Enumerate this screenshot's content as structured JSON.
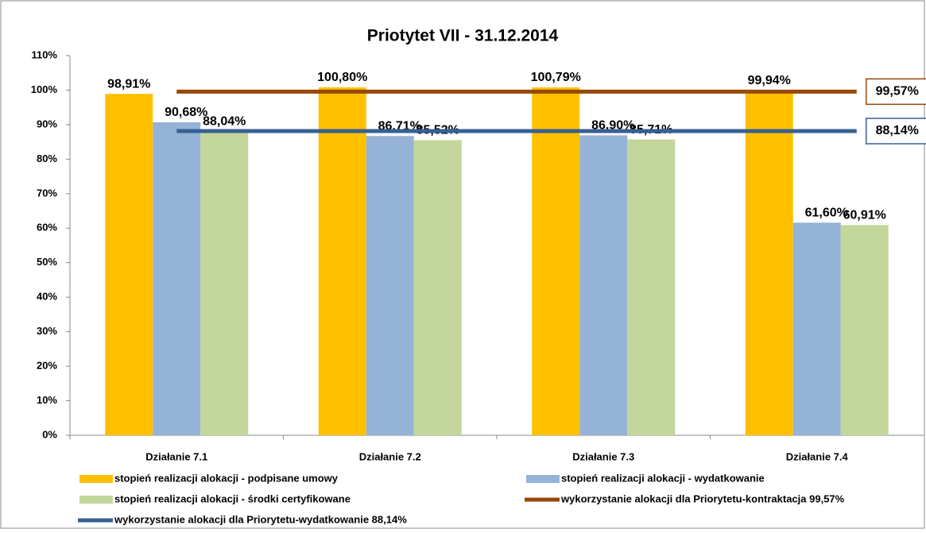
{
  "chart_data": {
    "type": "bar",
    "title": "Priotytet VII - 31.12.2014",
    "categories": [
      "Działanie  7.1",
      "Działanie  7.2",
      "Działanie  7.3",
      "Działanie  7.4"
    ],
    "ylim": [
      0,
      110
    ],
    "yticks": [
      {
        "value": 0,
        "label": "0%"
      },
      {
        "value": 10,
        "label": "10%"
      },
      {
        "value": 20,
        "label": "20%"
      },
      {
        "value": 30,
        "label": "30%"
      },
      {
        "value": 40,
        "label": "40%"
      },
      {
        "value": 50,
        "label": "50%"
      },
      {
        "value": 60,
        "label": "60%"
      },
      {
        "value": 70,
        "label": "70%"
      },
      {
        "value": 80,
        "label": "80%"
      },
      {
        "value": 90,
        "label": "90%"
      },
      {
        "value": 100,
        "label": "100%"
      },
      {
        "value": 110,
        "label": "110%"
      }
    ],
    "series": [
      {
        "name": "stopień realizacji alokacji - podpisane umowy",
        "color": "#ffc000",
        "values": [
          98.91,
          100.8,
          100.79,
          99.94
        ],
        "value_labels": [
          "98,91%",
          "100,80%",
          "100,79%",
          "99,94%"
        ]
      },
      {
        "name": "stopień realizacji alokacji - wydatkowanie",
        "color": "#95b3d7",
        "values": [
          90.68,
          86.71,
          86.9,
          61.6
        ],
        "value_labels": [
          "90,68%",
          "86,71%",
          "86,90%",
          "61,60%"
        ]
      },
      {
        "name": "stopień realizacji alokacji - środki certyfikowane",
        "color": "#c3d69b",
        "values": [
          88.04,
          85.52,
          85.71,
          60.91
        ],
        "value_labels": [
          "88,04%",
          "85,52%",
          "85,71%",
          "60,91%"
        ]
      }
    ],
    "reference_lines": [
      {
        "name": "wykorzystanie alokacji dla Priorytetu-kontraktacja  99,57%",
        "color": "#984807",
        "value": 99.57,
        "value_label": "99,57%"
      },
      {
        "name": "wykorzystanie alokacji dla Priorytetu-wydatkowanie  88,14%",
        "color": "#376092",
        "value": 88.14,
        "value_label": "88,14%"
      }
    ]
  }
}
